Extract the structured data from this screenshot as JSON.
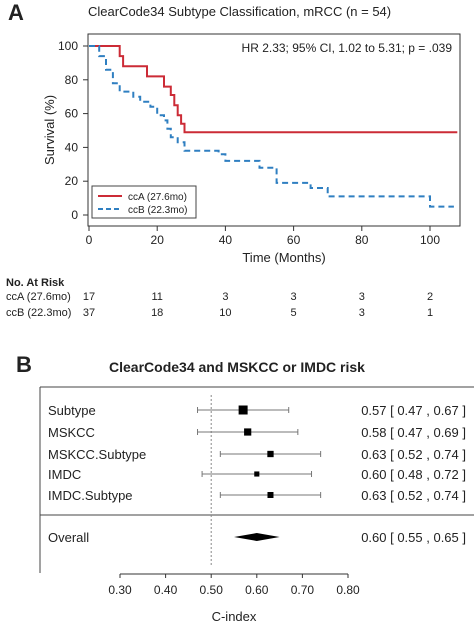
{
  "panel_a": {
    "letter": "A",
    "title": "ClearCode34 Subtype Classification, mRCC (n = 54)",
    "annotation": "HR 2.33; 95% CI, 1.02 to 5.31; p = .039",
    "risk_table": {
      "header": "No. At Risk",
      "rows": [
        {
          "label": "ccA (27.6mo)",
          "counts": [
            "17",
            "11",
            "3",
            "3",
            "3",
            "2"
          ]
        },
        {
          "label": "ccB (22.3mo)",
          "counts": [
            "37",
            "18",
            "10",
            "5",
            "3",
            "1"
          ]
        }
      ]
    }
  },
  "panel_b": {
    "letter": "B",
    "title": "ClearCode34 and MSKCC or IMDC risk"
  },
  "chart_data": [
    {
      "type": "line",
      "title": "ClearCode34 Subtype Classification, mRCC (n = 54)",
      "xlabel": "Time (Months)",
      "ylabel": "Survival (%)",
      "xlim": [
        0,
        110
      ],
      "ylim": [
        0,
        100
      ],
      "xticks": [
        0,
        20,
        40,
        60,
        80,
        100
      ],
      "yticks": [
        0,
        20,
        40,
        60,
        80,
        100
      ],
      "legend_position": "bottom-left",
      "series": [
        {
          "name": "ccA (27.6mo)",
          "color": "#cc2b36",
          "style": "solid",
          "steps": [
            [
              0,
              100
            ],
            [
              9,
              100
            ],
            [
              9,
              94
            ],
            [
              10,
              94
            ],
            [
              10,
              88
            ],
            [
              17,
              88
            ],
            [
              17,
              82
            ],
            [
              22,
              82
            ],
            [
              22,
              76
            ],
            [
              24,
              76
            ],
            [
              24,
              71
            ],
            [
              25,
              71
            ],
            [
              25,
              65
            ],
            [
              26,
              65
            ],
            [
              26,
              59
            ],
            [
              27,
              59
            ],
            [
              27,
              54
            ],
            [
              28,
              54
            ],
            [
              28,
              49
            ],
            [
              108,
              49
            ]
          ]
        },
        {
          "name": "ccB (22.3mo)",
          "color": "#2f7fc1",
          "style": "dashed",
          "steps": [
            [
              0,
              100
            ],
            [
              3,
              100
            ],
            [
              3,
              94
            ],
            [
              5,
              94
            ],
            [
              5,
              86
            ],
            [
              7,
              86
            ],
            [
              7,
              78
            ],
            [
              9,
              78
            ],
            [
              9,
              73
            ],
            [
              13,
              73
            ],
            [
              13,
              70
            ],
            [
              15,
              70
            ],
            [
              15,
              67
            ],
            [
              18,
              67
            ],
            [
              18,
              64
            ],
            [
              20,
              64
            ],
            [
              20,
              59
            ],
            [
              22,
              59
            ],
            [
              22,
              56
            ],
            [
              23,
              56
            ],
            [
              23,
              51
            ],
            [
              24,
              51
            ],
            [
              24,
              46
            ],
            [
              26,
              46
            ],
            [
              26,
              43
            ],
            [
              28,
              43
            ],
            [
              28,
              38
            ],
            [
              38,
              38
            ],
            [
              38,
              36
            ],
            [
              40,
              36
            ],
            [
              40,
              32
            ],
            [
              50,
              32
            ],
            [
              50,
              28
            ],
            [
              55,
              28
            ],
            [
              55,
              19
            ],
            [
              65,
              19
            ],
            [
              65,
              16
            ],
            [
              70,
              16
            ],
            [
              70,
              11
            ],
            [
              100,
              11
            ],
            [
              100,
              5
            ],
            [
              107,
              5
            ]
          ]
        }
      ]
    },
    {
      "type": "forest",
      "title": "ClearCode34 and MSKCC or IMDC risk",
      "xlabel": "C-index",
      "xlim": [
        0.3,
        0.8
      ],
      "xticks": [
        "0.30",
        "0.40",
        "0.50",
        "0.60",
        "0.70",
        "0.80"
      ],
      "reference_line": 0.5,
      "rows": [
        {
          "label": "Subtype",
          "estimate": 0.57,
          "lower": 0.47,
          "upper": 0.67,
          "text": "0.57 [ 0.47 , 0.67 ]",
          "weight": 1.0
        },
        {
          "label": "MSKCC",
          "estimate": 0.58,
          "lower": 0.47,
          "upper": 0.69,
          "text": "0.58 [ 0.47 , 0.69 ]",
          "weight": 0.7
        },
        {
          "label": "MSKCC.Subtype",
          "estimate": 0.63,
          "lower": 0.52,
          "upper": 0.74,
          "text": "0.63 [ 0.52 , 0.74 ]",
          "weight": 0.55
        },
        {
          "label": "IMDC",
          "estimate": 0.6,
          "lower": 0.48,
          "upper": 0.72,
          "text": "0.60 [ 0.48 , 0.72 ]",
          "weight": 0.35
        },
        {
          "label": "IMDC.Subtype",
          "estimate": 0.63,
          "lower": 0.52,
          "upper": 0.74,
          "text": "0.63 [ 0.52 , 0.74 ]",
          "weight": 0.5
        }
      ],
      "overall": {
        "label": "Overall",
        "estimate": 0.6,
        "lower": 0.55,
        "upper": 0.65,
        "text": "0.60 [ 0.55 , 0.65 ]"
      }
    }
  ]
}
